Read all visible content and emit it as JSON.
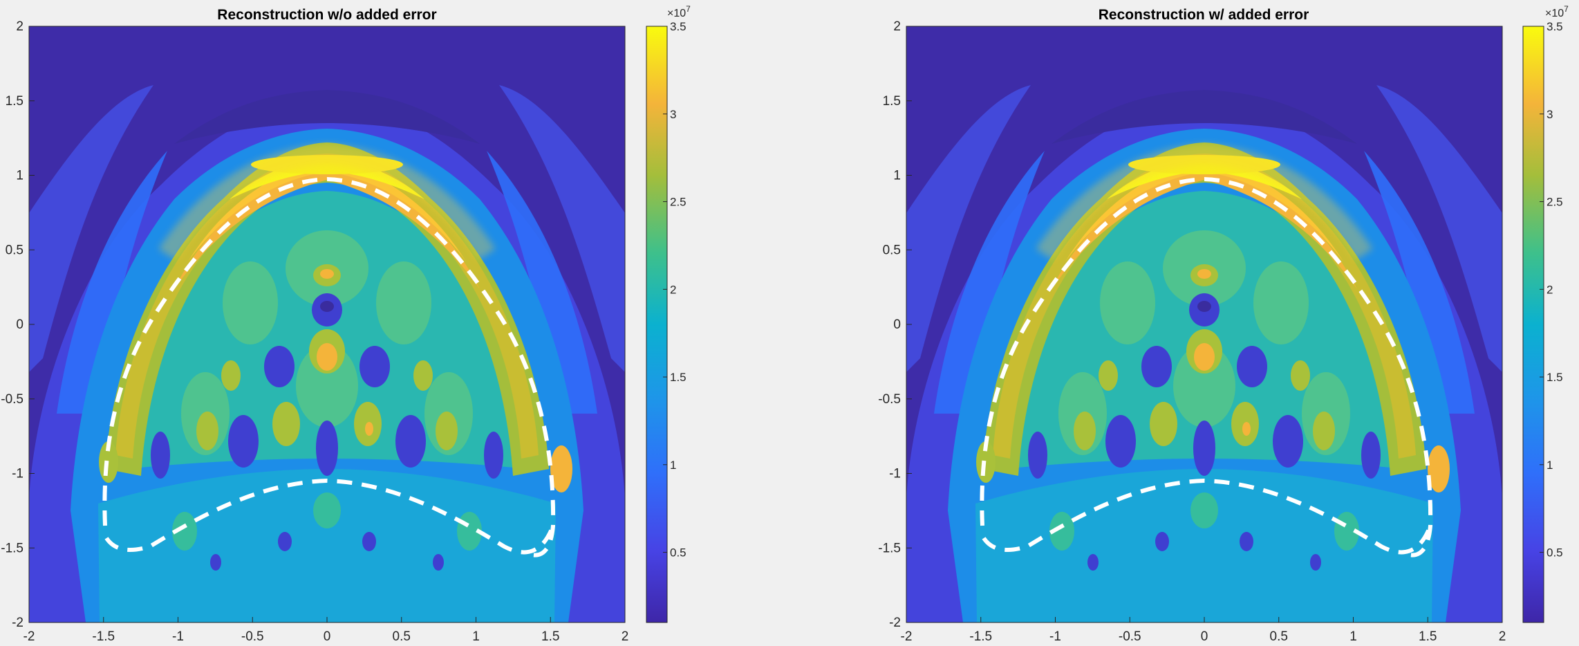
{
  "chart_data": [
    {
      "type": "heatmap",
      "title": "Reconstruction w/o added error",
      "xlim": [
        -2,
        2
      ],
      "ylim": [
        -2,
        2
      ],
      "xticks": [
        "-2",
        "-1.5",
        "-1",
        "-0.5",
        "0",
        "0.5",
        "1",
        "1.5",
        "2"
      ],
      "yticks": [
        "2",
        "1.5",
        "1",
        "0.5",
        "0",
        "-0.5",
        "-1",
        "-1.5",
        "-2"
      ],
      "colorbar": {
        "range": [
          0.1,
          3.5
        ],
        "ticks": [
          "3.5",
          "3",
          "2.5",
          "2",
          "1.5",
          "1",
          "0.5"
        ],
        "exponent_base": "×10",
        "exponent_power": "7"
      },
      "overlay": {
        "outer_arc": "dashed white curve from (-1.45,-1.5) up through (0,1) down to (1.5,-1.5)",
        "inner_arc": "dashed white curve from (-1.45,-1.5) through (0,-1) to (1.5,-1.5)"
      },
      "hotspots": [
        {
          "x": 0,
          "y": 0.85,
          "value": 3.45
        },
        {
          "x": 0,
          "y": -0.2,
          "value": 2.9
        },
        {
          "x": 0,
          "y": 0.4,
          "value": 2.8
        },
        {
          "x": 1.45,
          "y": -0.95,
          "value": 2.9
        },
        {
          "x": -1.45,
          "y": -0.95,
          "value": 2.6
        }
      ]
    },
    {
      "type": "heatmap",
      "title": "Reconstruction w/ added error",
      "xlim": [
        -2,
        2
      ],
      "ylim": [
        -2,
        2
      ],
      "xticks": [
        "-2",
        "-1.5",
        "-1",
        "-0.5",
        "0",
        "0.5",
        "1",
        "1.5",
        "2"
      ],
      "yticks": [
        "2",
        "1.5",
        "1",
        "0.5",
        "0",
        "-0.5",
        "-1",
        "-1.5",
        "-2"
      ],
      "colorbar": {
        "range": [
          0.1,
          3.5
        ],
        "ticks": [
          "3.5",
          "3",
          "2.5",
          "2",
          "1.5",
          "1",
          "0.5"
        ],
        "exponent_base": "×10",
        "exponent_power": "7"
      },
      "overlay": {
        "outer_arc": "dashed white curve from (-1.45,-1.5) up through (0,1) down to (1.5,-1.5)",
        "inner_arc": "dashed white curve from (-1.45,-1.5) through (0,-1) to (1.5,-1.5)"
      },
      "hotspots": [
        {
          "x": 0,
          "y": 0.85,
          "value": 3.45
        },
        {
          "x": 0,
          "y": -0.2,
          "value": 2.9
        },
        {
          "x": 0,
          "y": 0.4,
          "value": 2.8
        },
        {
          "x": 1.45,
          "y": -0.95,
          "value": 2.9
        },
        {
          "x": -1.45,
          "y": -0.95,
          "value": 2.6
        }
      ]
    }
  ]
}
